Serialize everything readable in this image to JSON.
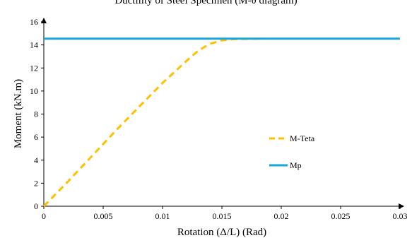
{
  "chart_data": {
    "type": "line",
    "title": "Ductility of Steel Specimen (M-θ diagram)",
    "xlabel": "Rotation (Δ/L) (Rad)",
    "ylabel": "Moment (kN.m)",
    "xlim": [
      0,
      0.03
    ],
    "ylim": [
      0,
      16
    ],
    "x_ticks": [
      "0",
      "0.005",
      "0.01",
      "0.015",
      "0.02",
      "0.025",
      "0.03"
    ],
    "y_ticks": [
      "0",
      "2",
      "4",
      "6",
      "8",
      "10",
      "12",
      "14",
      "16"
    ],
    "grid": false,
    "legend_position": "center-right",
    "series": [
      {
        "name": "M-Teta",
        "style": "dashed",
        "color": "#FFC000",
        "x": [
          0,
          0.002,
          0.004,
          0.006,
          0.008,
          0.01,
          0.012,
          0.013,
          0.014,
          0.015,
          0.016,
          0.0185
        ],
        "y": [
          0,
          2.1,
          4.3,
          6.5,
          8.6,
          10.7,
          12.6,
          13.5,
          14.1,
          14.4,
          14.5,
          14.55
        ]
      },
      {
        "name": "Mp",
        "style": "solid",
        "color": "#1AA6D9",
        "x": [
          0,
          0.03
        ],
        "y": [
          14.55,
          14.55
        ]
      }
    ]
  }
}
